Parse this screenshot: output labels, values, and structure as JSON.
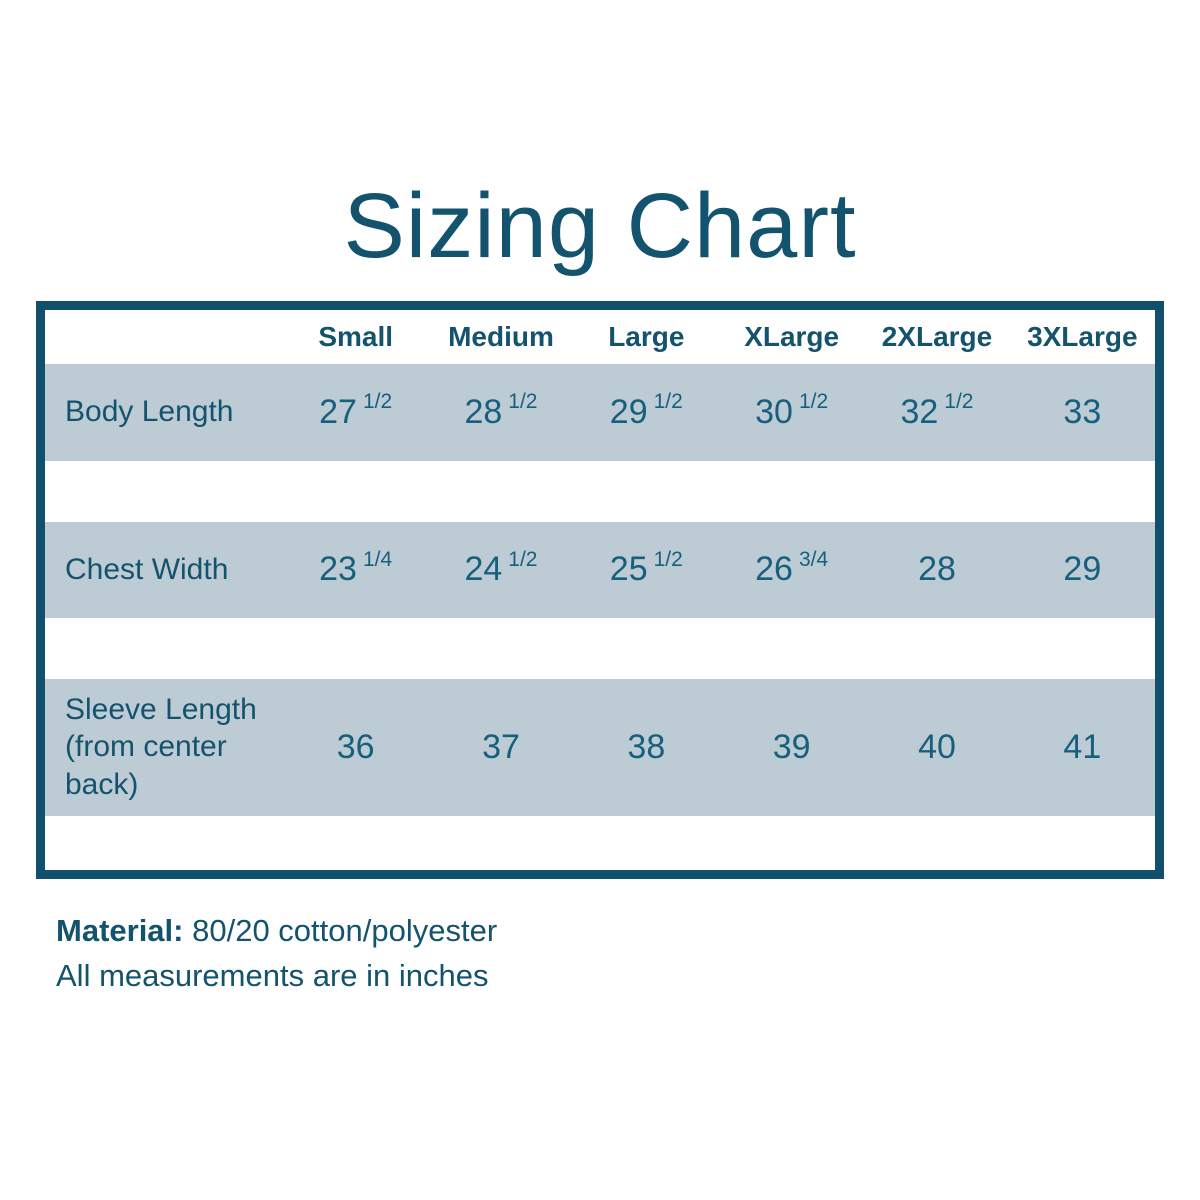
{
  "title": "Sizing Chart",
  "colors": {
    "teal_text": "#16607d",
    "title_teal": "#14536e",
    "table_border": "#11506c",
    "row_background": "#bdcbd5",
    "page_background": "#ffffff"
  },
  "chart_data": {
    "type": "table",
    "title": "Sizing Chart",
    "columns": [
      "Small",
      "Medium",
      "Large",
      "XLarge",
      "2XLarge",
      "3XLarge"
    ],
    "rows": [
      {
        "label": "Body Length",
        "values": [
          "27 1/2",
          "28 1/2",
          "29 1/2",
          "30 1/2",
          "32 1/2",
          "33"
        ]
      },
      {
        "label": "Chest Width",
        "values": [
          "23 1/4",
          "24 1/2",
          "25 1/2",
          "26 3/4",
          "28",
          "29"
        ]
      },
      {
        "label": "Sleeve Length (from center back)",
        "values": [
          "36",
          "37",
          "38",
          "39",
          "40",
          "41"
        ]
      }
    ],
    "layout_hints": {
      "header_background": "white",
      "data_row_background": "light-blue-gray",
      "white_gap_rows_between_data_rows": true,
      "units": "inches"
    }
  },
  "footer": {
    "material_label": "Material:",
    "material_value": "80/20 cotton/polyester",
    "note": "All measurements are in inches"
  }
}
